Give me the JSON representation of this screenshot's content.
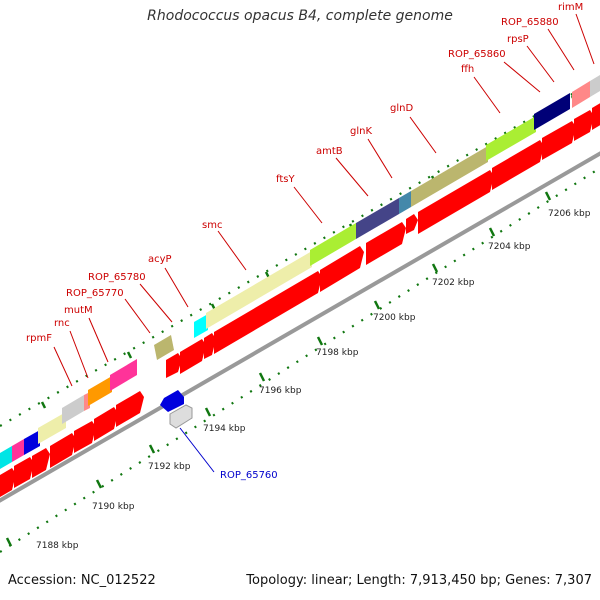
{
  "title": "Rhodococcus opacus B4, complete genome",
  "footer": {
    "accession": "Accession: NC_012522",
    "stats": "Topology: linear; Length: 7,913,450 bp; Genes: 7,307"
  },
  "colors": {
    "cds": "#ff0000",
    "backbone": "#999999",
    "dots": "#007700",
    "label_forward": "#cc0000",
    "label_reverse": "#0000cc"
  },
  "ruler_labels": [
    "7188 kbp",
    "7190 kbp",
    "7192 kbp",
    "7194 kbp",
    "7196 kbp",
    "7198 kbp",
    "7200 kbp",
    "7202 kbp",
    "7204 kbp",
    "7206 kbp"
  ],
  "gene_labels": {
    "rpmF": "rpmF",
    "rnc": "rnc",
    "mutM": "mutM",
    "ROP_65770": "ROP_65770",
    "ROP_65780": "ROP_65780",
    "acyP": "acyP",
    "smc": "smc",
    "ftsY": "ftsY",
    "amtB": "amtB",
    "glnK": "glnK",
    "glnD": "glnD",
    "ffh": "ffh",
    "ROP_65860": "ROP_65860",
    "rpsP": "rpsP",
    "ROP_65880": "ROP_65880",
    "rimM": "rimM",
    "ROP_65760": "ROP_65760"
  }
}
